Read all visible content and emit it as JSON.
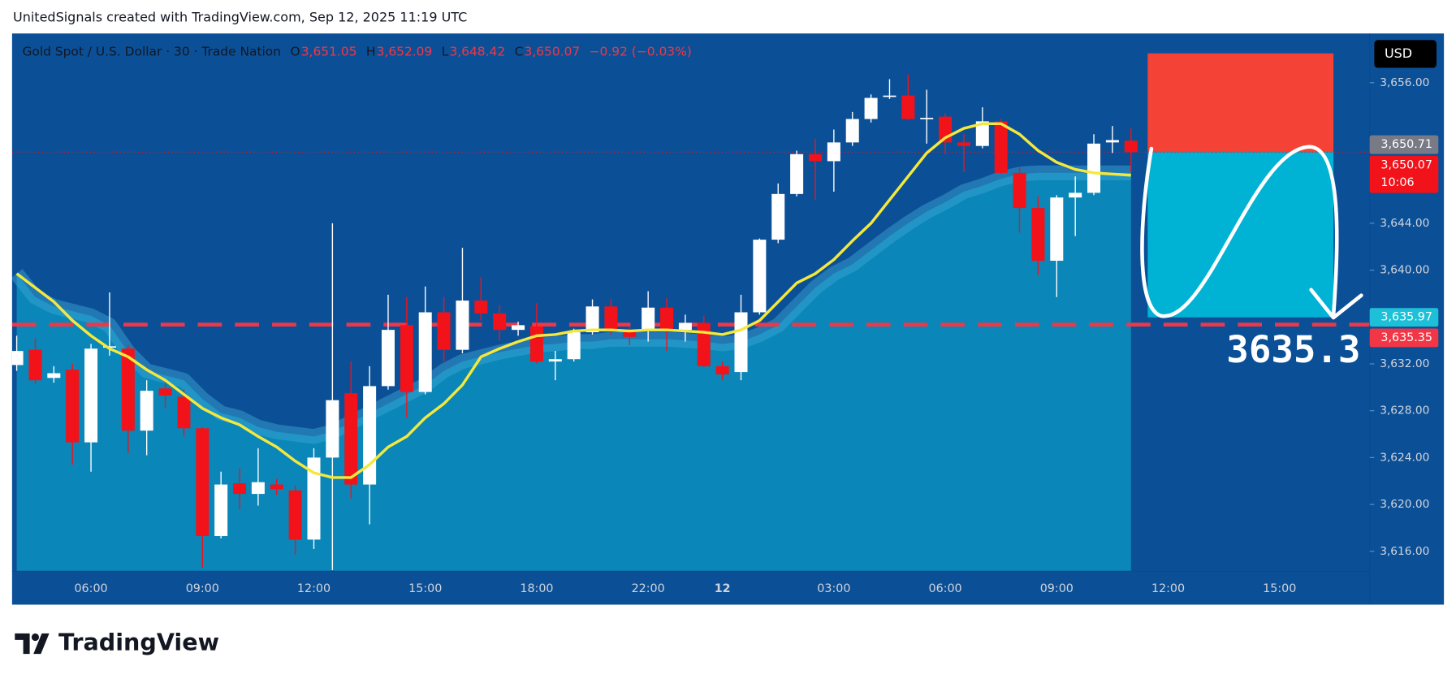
{
  "header": {
    "attribution": "UnitedSignals created with TradingView.com, Sep 12, 2025 11:19 UTC",
    "symbol": "Gold Spot / U.S. Dollar · 30 · Trade Nation",
    "ohlc": [
      {
        "key": "O",
        "value": "3,651.05"
      },
      {
        "key": "H",
        "value": "3,652.09"
      },
      {
        "key": "L",
        "value": "3,648.42"
      },
      {
        "key": "C",
        "value": "3,650.07"
      }
    ],
    "change": "−0.92 (−0.03%)",
    "currency": "USD"
  },
  "footer": {
    "logo": "TradingView"
  },
  "chart_data": {
    "type": "candlestick",
    "categories": [
      null,
      null,
      null,
      null,
      "06:00",
      null,
      null,
      null,
      null,
      null,
      "09:00",
      null,
      null,
      null,
      null,
      null,
      "12:00",
      null,
      null,
      null,
      null,
      null,
      "15:00",
      null,
      null,
      null,
      null,
      null,
      "18:00",
      null,
      null,
      null,
      null,
      null,
      "22:00",
      null,
      null,
      null,
      "12",
      null,
      null,
      null,
      null,
      null,
      "03:00",
      null,
      null,
      null,
      null,
      null,
      "06:00",
      null,
      null,
      null,
      null,
      null,
      "09:00",
      null,
      null,
      null,
      null,
      null,
      "12:00",
      null,
      null,
      null,
      null,
      null,
      "15:00",
      null,
      null,
      null
    ],
    "open": [
      3631.9,
      3633.2,
      3630.8,
      3631.5,
      3625.3,
      3633.4,
      3633.3,
      3626.3,
      3629.9,
      3629.2,
      3626.5,
      3617.3,
      3621.8,
      3620.9,
      3621.7,
      3621.2,
      3617.0,
      3624.0,
      3629.5,
      3621.7,
      3630.1,
      3635.3,
      3629.6,
      3636.4,
      3633.2,
      3637.4,
      3636.3,
      3634.9,
      3635.2,
      3632.2,
      3632.4,
      3634.7,
      3636.9,
      3634.9,
      3634.8,
      3636.8,
      3634.9,
      3635.5,
      3631.8,
      3631.3,
      3636.4,
      3642.6,
      3646.5,
      3649.9,
      3649.3,
      3650.9,
      3652.9,
      3654.8,
      3654.9,
      3652.9,
      3653.1,
      3650.9,
      3650.6,
      3652.7,
      3648.3,
      3645.3,
      3640.8,
      3646.2,
      3646.6,
      3650.9,
      3651.05,
      null,
      null,
      null,
      null,
      null,
      null,
      null,
      null,
      null,
      null,
      null
    ],
    "high": [
      3634.4,
      3634.2,
      3631.8,
      3632.0,
      3633.7,
      3638.1,
      3633.6,
      3630.6,
      3630.4,
      3629.8,
      3626.6,
      3622.8,
      3623.1,
      3624.8,
      3622.2,
      3621.6,
      3624.8,
      3644.0,
      3632.2,
      3631.8,
      3637.9,
      3637.7,
      3638.6,
      3637.7,
      3641.9,
      3639.4,
      3637.0,
      3635.6,
      3637.2,
      3633.1,
      3635.0,
      3637.5,
      3637.5,
      3635.2,
      3638.2,
      3637.6,
      3636.2,
      3636.1,
      3632.2,
      3637.9,
      3642.7,
      3647.4,
      3650.2,
      3651.2,
      3652.0,
      3653.5,
      3655.0,
      3656.3,
      3656.7,
      3655.4,
      3653.4,
      3651.6,
      3653.9,
      3652.9,
      3648.8,
      3646.3,
      3646.4,
      3648.0,
      3651.6,
      3652.3,
      3652.09,
      null,
      null,
      null,
      null,
      null,
      null,
      null,
      null,
      null,
      null,
      null
    ],
    "low": [
      3631.4,
      3630.3,
      3630.4,
      3623.4,
      3622.8,
      3632.7,
      3624.4,
      3624.2,
      3628.2,
      3625.8,
      3614.6,
      3617.1,
      3619.6,
      3619.9,
      3620.8,
      3615.7,
      3616.2,
      3614.4,
      3620.5,
      3618.3,
      3629.8,
      3627.4,
      3629.4,
      3632.2,
      3632.9,
      3635.7,
      3634.0,
      3634.4,
      3632.0,
      3630.6,
      3632.2,
      3634.5,
      3634.5,
      3633.6,
      3633.9,
      3633.1,
      3633.9,
      3631.7,
      3630.6,
      3630.6,
      3636.2,
      3642.3,
      3646.3,
      3646.0,
      3646.7,
      3650.6,
      3652.6,
      3654.6,
      3652.8,
      3650.8,
      3649.9,
      3648.4,
      3650.4,
      3648.2,
      3643.2,
      3639.6,
      3637.7,
      3642.9,
      3646.4,
      3650.0,
      3648.42,
      null,
      null,
      null,
      null,
      null,
      null,
      null,
      null,
      null,
      null,
      null
    ],
    "close": [
      3633.1,
      3630.6,
      3631.2,
      3625.3,
      3633.3,
      3633.5,
      3626.3,
      3629.7,
      3629.3,
      3626.5,
      3617.3,
      3621.7,
      3620.9,
      3621.9,
      3621.3,
      3617.0,
      3624.0,
      3628.9,
      3621.7,
      3630.1,
      3634.9,
      3629.6,
      3636.4,
      3633.2,
      3637.4,
      3636.3,
      3634.9,
      3635.3,
      3632.2,
      3632.4,
      3634.7,
      3636.9,
      3634.9,
      3634.3,
      3636.8,
      3634.9,
      3635.5,
      3631.8,
      3631.1,
      3636.4,
      3642.6,
      3646.5,
      3649.9,
      3649.3,
      3650.9,
      3652.9,
      3654.7,
      3654.9,
      3652.9,
      3653.0,
      3650.9,
      3650.6,
      3652.7,
      3648.3,
      3645.3,
      3640.8,
      3646.2,
      3646.6,
      3650.8,
      3651.1,
      3650.07,
      null,
      null,
      null,
      null,
      null,
      null,
      null,
      null,
      null,
      null,
      null
    ],
    "up_color": "#ffffff",
    "down_color": "#f2121a",
    "ylim": [
      3614.3,
      3660.2
    ],
    "yticks": [
      {
        "value": 3656,
        "label": "3,656.00"
      },
      {
        "value": 3644,
        "label": "3,644.00"
      },
      {
        "value": 3640,
        "label": "3,640.00"
      },
      {
        "value": 3632,
        "label": "3,632.00"
      },
      {
        "value": 3628,
        "label": "3,628.00"
      },
      {
        "value": 3624,
        "label": "3,624.00"
      },
      {
        "value": 3620,
        "label": "3,620.00"
      },
      {
        "value": 3616,
        "label": "3,616.00"
      }
    ],
    "series": [
      {
        "color": "#f5e83c",
        "values": [
          3639.7,
          3638.5,
          3637.3,
          3635.7,
          3634.4,
          3633.3,
          3632.6,
          3631.5,
          3630.6,
          3629.4,
          3628.2,
          3627.4,
          3626.8,
          3625.8,
          3624.9,
          3623.7,
          3622.7,
          3622.3,
          3622.3,
          3623.4,
          3624.9,
          3625.8,
          3627.4,
          3628.6,
          3630.2,
          3632.6,
          3633.3,
          3633.9,
          3634.4,
          3634.5,
          3634.8,
          3634.9,
          3634.9,
          3634.8,
          3634.9,
          3634.9,
          3634.8,
          3634.7,
          3634.5,
          3634.9,
          3635.7,
          3637.3,
          3638.9,
          3639.7,
          3640.9,
          3642.5,
          3644.0,
          3646.0,
          3648.0,
          3650.0,
          3651.3,
          3652.1,
          3652.5,
          3652.5,
          3651.6,
          3650.2,
          3649.2,
          3648.6,
          3648.3,
          3648.2,
          3648.1,
          null,
          null,
          null,
          null,
          null,
          null,
          null,
          null,
          null,
          null,
          null
        ]
      }
    ],
    "area": {
      "color": "#0a86b8",
      "values": [
        3639.7,
        3637.7,
        3636.9,
        3636.5,
        3636.1,
        3635.3,
        3633.0,
        3631.4,
        3631.0,
        3630.6,
        3629.0,
        3627.8,
        3627.4,
        3626.6,
        3626.2,
        3626.0,
        3625.8,
        3626.2,
        3627.0,
        3627.8,
        3628.6,
        3629.4,
        3630.2,
        3631.4,
        3632.2,
        3632.6,
        3633.0,
        3633.3,
        3633.6,
        3633.7,
        3633.9,
        3633.9,
        3634.1,
        3634.1,
        3634.1,
        3634.1,
        3634.0,
        3633.9,
        3633.7,
        3633.9,
        3634.5,
        3635.3,
        3636.9,
        3638.5,
        3639.7,
        3640.5,
        3641.7,
        3642.9,
        3644.0,
        3645.0,
        3645.8,
        3646.7,
        3647.2,
        3647.8,
        3648.2,
        3648.3,
        3648.3,
        3648.3,
        3648.3,
        3648.3,
        3648.3,
        null,
        null,
        null,
        null,
        null,
        null,
        null,
        null,
        null,
        null,
        null
      ]
    },
    "price_tags": [
      {
        "value": 3650.71,
        "label": "3,650.71",
        "color": "#787b86"
      },
      {
        "value": 3650.07,
        "label": "3,650.07",
        "color": "#f2121a",
        "countdown": "10:06"
      },
      {
        "value": 3635.97,
        "label": "3,635.97",
        "color": "#1ec0d8"
      },
      {
        "value": 3635.35,
        "label": "3,635.35",
        "color": "#f23645"
      }
    ],
    "position": {
      "stop": 3658.5,
      "entry": 3650.07,
      "target": 3635.97,
      "stop_color": "#f44336",
      "target_color": "#00b3d4"
    },
    "annotation": "3635.3"
  }
}
